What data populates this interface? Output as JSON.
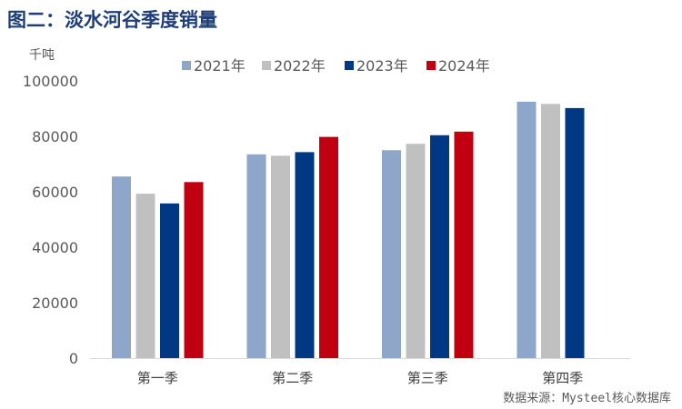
{
  "title": "图二：淡水河谷季度销量",
  "source": "数据来源：Mysteel核心数据库",
  "chart_data": {
    "type": "bar",
    "unit": "千吨",
    "categories": [
      "第一季",
      "第二季",
      "第三季",
      "第四季"
    ],
    "series": [
      {
        "name": "2021年",
        "color": "#8ea6c9",
        "values": [
          65500,
          73500,
          75000,
          92500
        ]
      },
      {
        "name": "2022年",
        "color": "#c0c0c0",
        "values": [
          59300,
          73000,
          77300,
          91700
        ]
      },
      {
        "name": "2023年",
        "color": "#003884",
        "values": [
          55800,
          74300,
          80400,
          90200
        ]
      },
      {
        "name": "2024年",
        "color": "#c00010",
        "values": [
          63500,
          79800,
          81700,
          null
        ]
      }
    ],
    "ylim": [
      0,
      100000
    ],
    "yticks": [
      0,
      20000,
      40000,
      60000,
      80000,
      100000
    ],
    "grid": false,
    "legend_position": "top-center"
  }
}
